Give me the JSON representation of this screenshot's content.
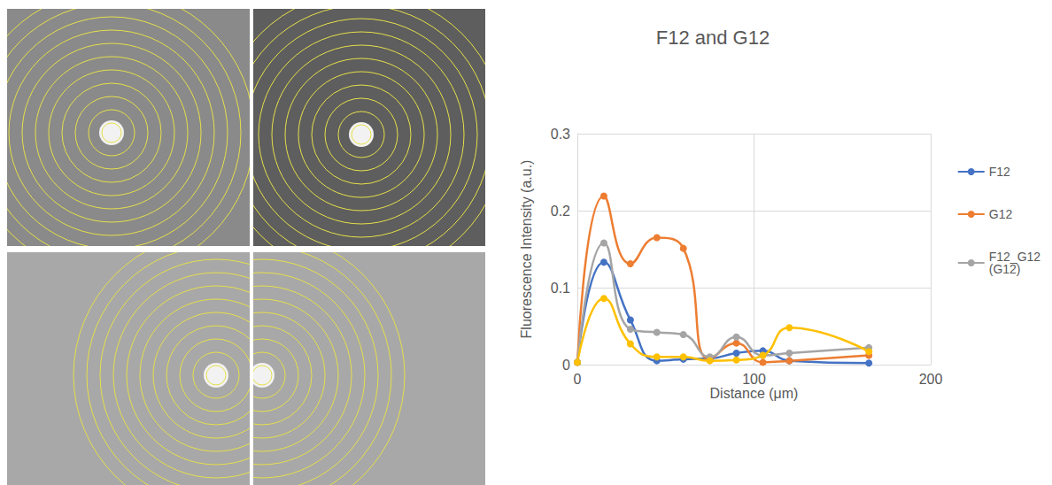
{
  "chart_data": {
    "type": "line",
    "title": "F12 and G12",
    "x_label": "Distance (μm)",
    "y_label": "Fluorescence Intensity (a.u.)",
    "x": [
      0,
      15,
      30,
      45,
      60,
      75,
      90,
      105,
      120,
      165
    ],
    "series": [
      {
        "name": "F12",
        "color": "#4472c4",
        "values": [
          0.003,
          0.133,
          0.058,
          0.005,
          0.007,
          0.008,
          0.015,
          0.018,
          0.005,
          0.002
        ]
      },
      {
        "name": "G12",
        "color": "#ed7d31",
        "values": [
          0.003,
          0.219,
          0.131,
          0.165,
          0.151,
          0.007,
          0.028,
          0.003,
          0.005,
          0.012
        ]
      },
      {
        "name": "F12_G12 (G12)",
        "color": "#a5a5a5",
        "values": [
          0.003,
          0.158,
          0.046,
          0.042,
          0.039,
          0.01,
          0.036,
          0.012,
          0.015,
          0.022
        ]
      },
      {
        "name": null,
        "color": "#ffc000",
        "values": [
          0.003,
          0.086,
          0.027,
          0.01,
          0.01,
          0.005,
          0.006,
          0.012,
          0.048,
          0.017
        ]
      }
    ],
    "xlim": [
      0,
      200
    ],
    "xticks": [
      0,
      100,
      200
    ],
    "ylim": [
      0,
      0.3
    ],
    "yticks": [
      0,
      0.1,
      0.2,
      0.3
    ],
    "grid": true,
    "legend": "right",
    "marker": "circle",
    "line_style": "smooth"
  }
}
